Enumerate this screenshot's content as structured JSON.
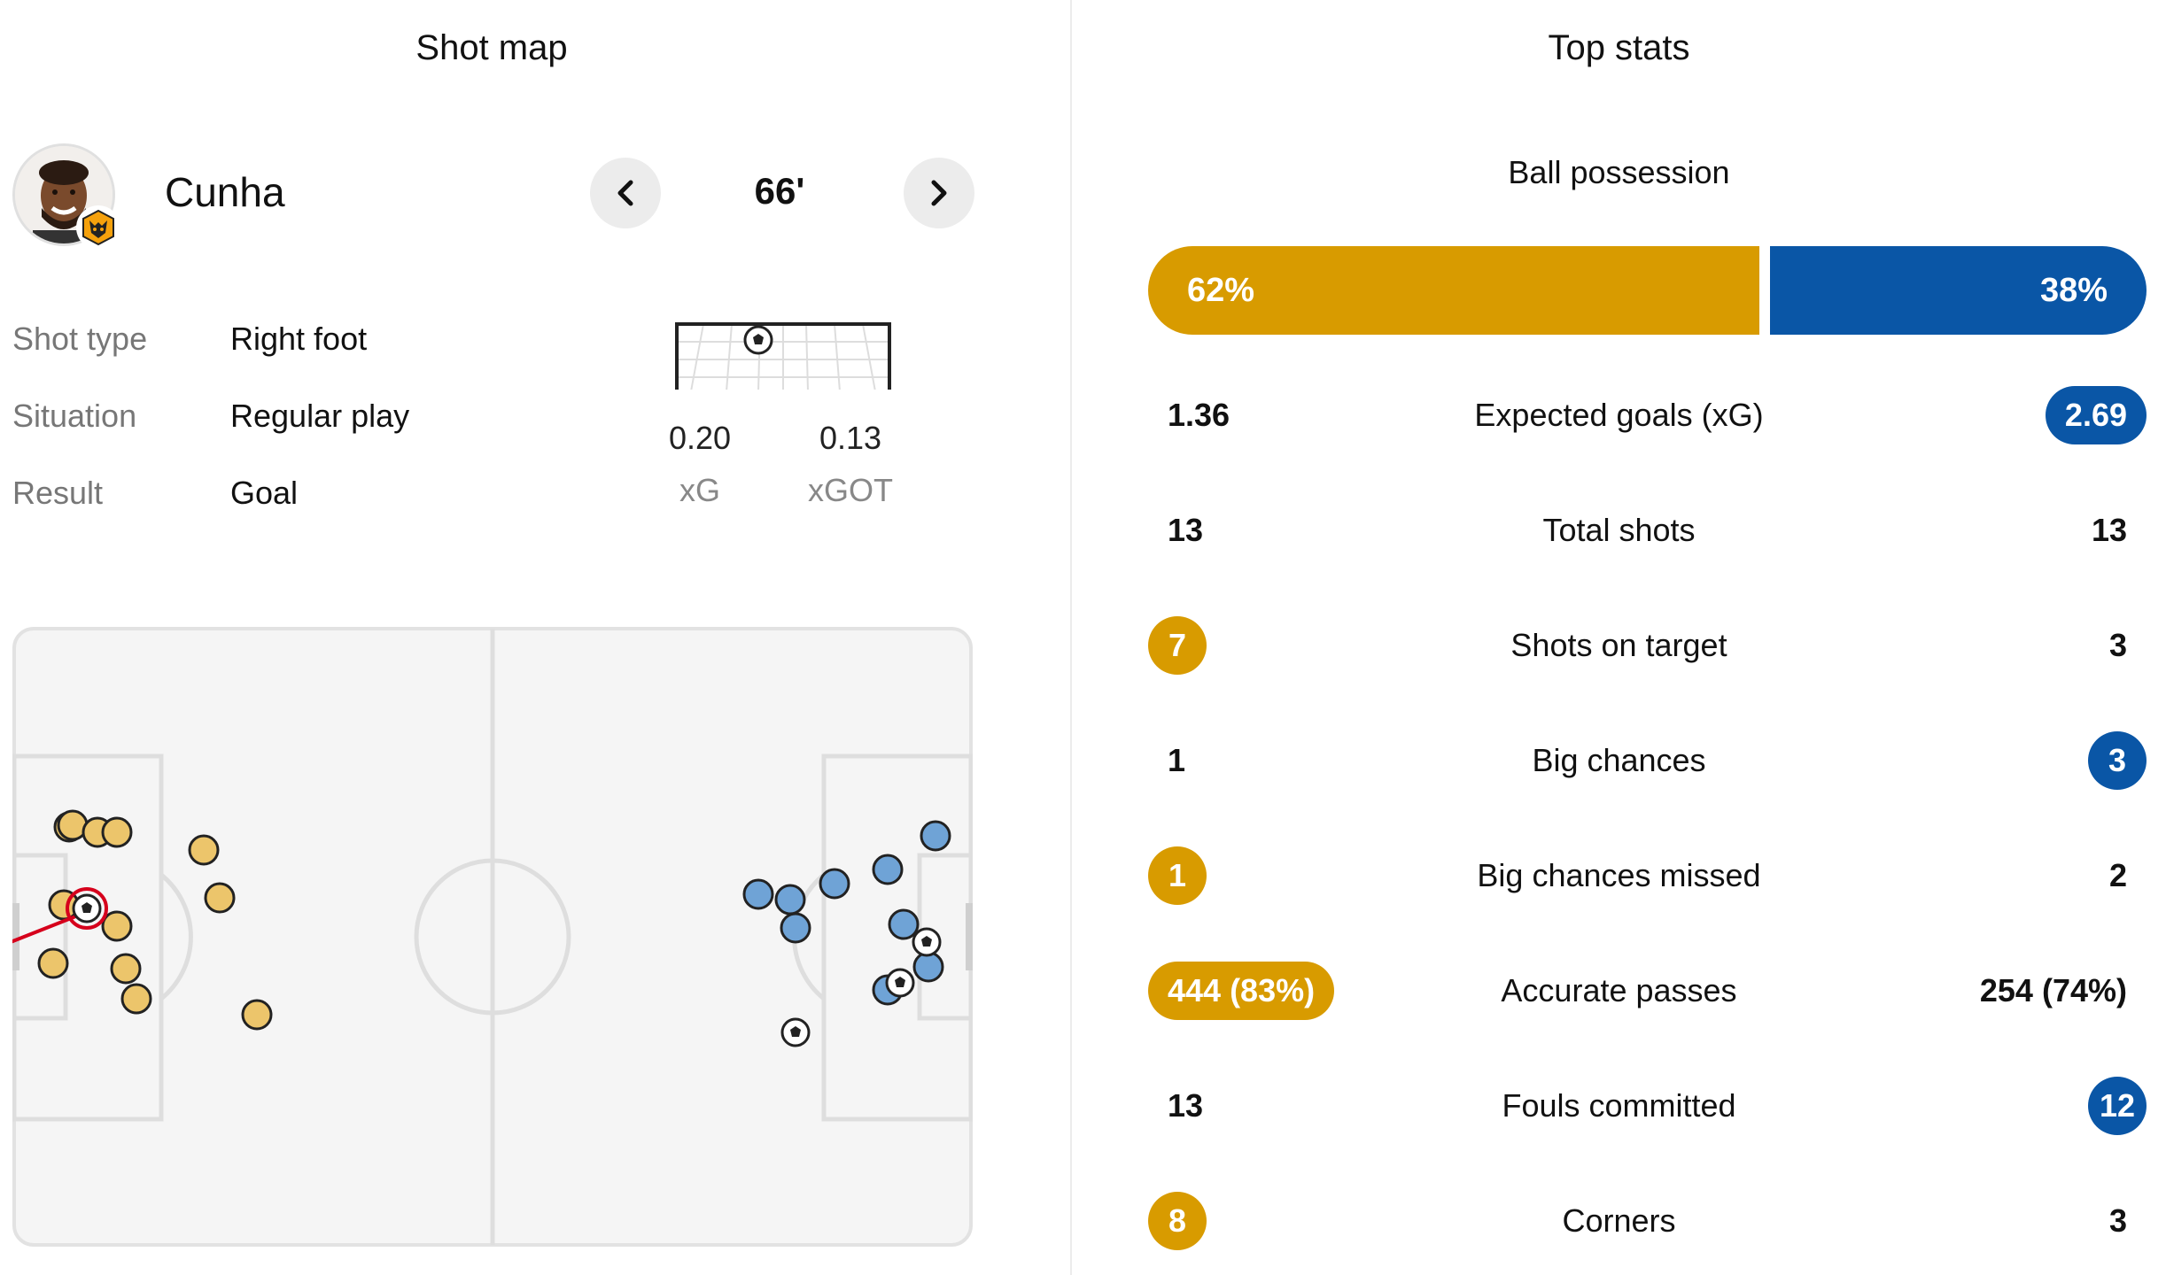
{
  "shot_map": {
    "title": "Shot map",
    "player": {
      "name": "Cunha"
    },
    "minute": "66'",
    "details": [
      {
        "label": "Shot type",
        "value": "Right foot"
      },
      {
        "label": "Situation",
        "value": "Regular play"
      },
      {
        "label": "Result",
        "value": "Goal"
      }
    ],
    "xg": {
      "value": "0.20",
      "label": "xG"
    },
    "xgot": {
      "value": "0.13",
      "label": "xGOT"
    }
  },
  "top_stats": {
    "title": "Top stats",
    "possession": {
      "label": "Ball possession",
      "home": "62%",
      "away": "38%",
      "home_fraction": 0.62
    },
    "rows": [
      {
        "label": "Expected goals (xG)",
        "home": "1.36",
        "away": "2.69",
        "highlight": "away"
      },
      {
        "label": "Total shots",
        "home": "13",
        "away": "13",
        "highlight": "none"
      },
      {
        "label": "Shots on target",
        "home": "7",
        "away": "3",
        "highlight": "home"
      },
      {
        "label": "Big chances",
        "home": "1",
        "away": "3",
        "highlight": "away"
      },
      {
        "label": "Big chances missed",
        "home": "1",
        "away": "2",
        "highlight": "home"
      },
      {
        "label": "Accurate passes",
        "home": "444 (83%)",
        "away": "254 (74%)",
        "highlight": "home"
      },
      {
        "label": "Fouls committed",
        "home": "13",
        "away": "12",
        "highlight": "away"
      },
      {
        "label": "Corners",
        "home": "8",
        "away": "3",
        "highlight": "home"
      }
    ]
  },
  "colors": {
    "home": "#d89b00",
    "away": "#0a56a6",
    "home_shot": "#ecc56b",
    "away_shot": "#6fa3d6"
  }
}
